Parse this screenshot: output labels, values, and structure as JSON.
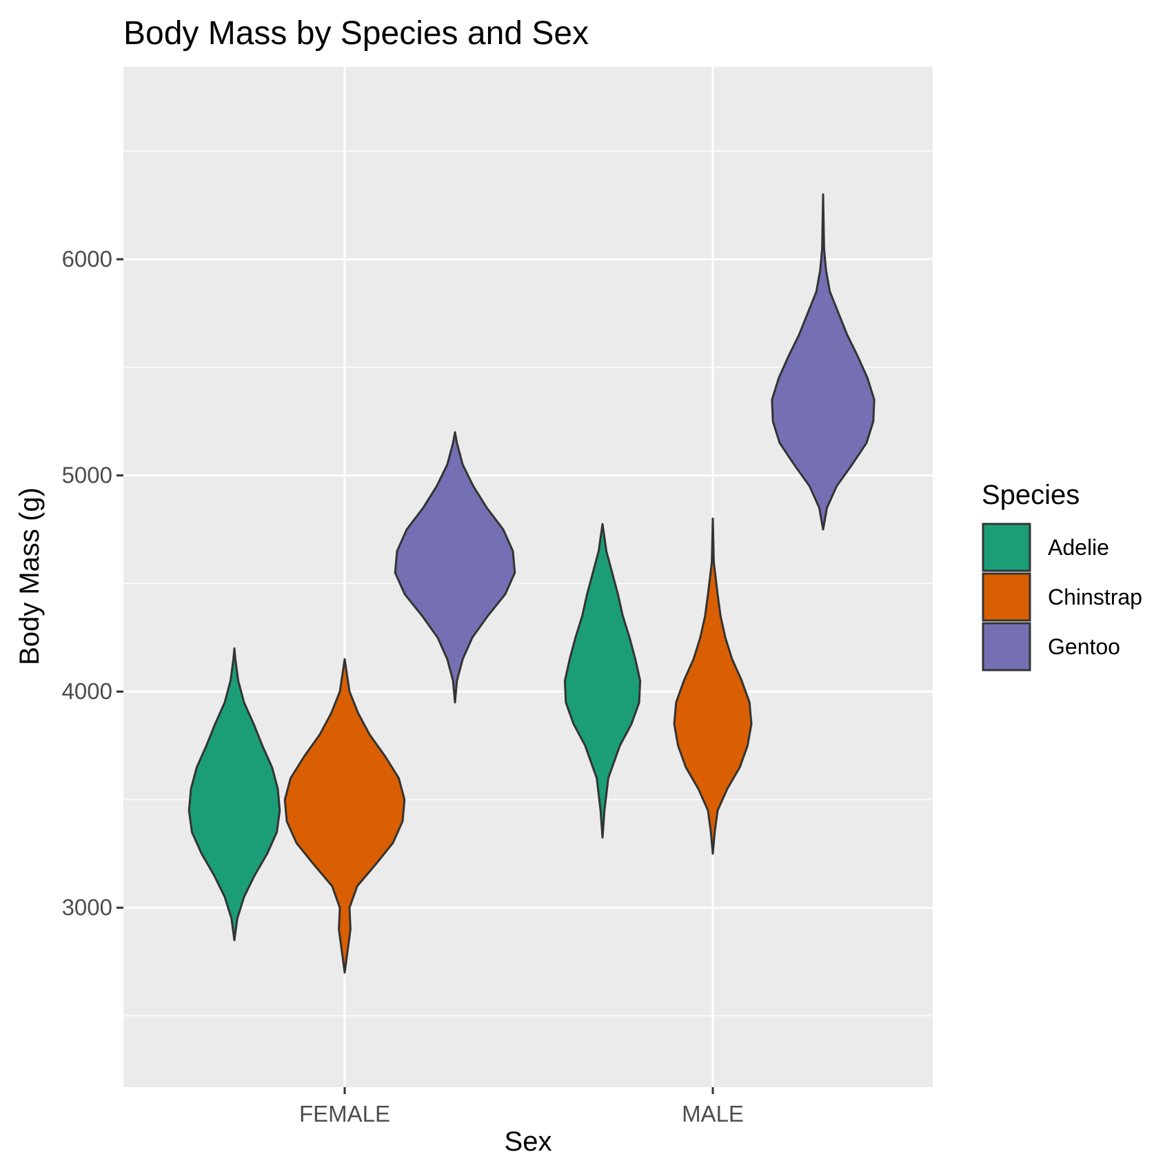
{
  "chart_data": {
    "type": "violin",
    "title": "Body Mass by Species and Sex",
    "xlabel": "Sex",
    "ylabel": "Body Mass (g)",
    "categories": [
      "FEMALE",
      "MALE"
    ],
    "yticks": [
      3000,
      4000,
      5000,
      6000
    ],
    "ylim": [
      2170,
      6890
    ],
    "grid": true,
    "legend": {
      "title": "Species",
      "position": "right"
    },
    "series": [
      {
        "name": "Adelie",
        "color": "#1b9e77",
        "violins": [
          {
            "category": "FEMALE",
            "min": 2850,
            "max": 4200,
            "profile": [
              [
                2850,
                0.0
              ],
              [
                2950,
                0.03
              ],
              [
                3050,
                0.1
              ],
              [
                3150,
                0.21
              ],
              [
                3250,
                0.34
              ],
              [
                3350,
                0.44
              ],
              [
                3450,
                0.47
              ],
              [
                3550,
                0.45
              ],
              [
                3650,
                0.39
              ],
              [
                3750,
                0.29
              ],
              [
                3850,
                0.2
              ],
              [
                3950,
                0.1
              ],
              [
                4050,
                0.04
              ],
              [
                4150,
                0.01
              ],
              [
                4200,
                0.0
              ]
            ]
          },
          {
            "category": "MALE",
            "min": 3325,
            "max": 4775,
            "profile": [
              [
                3325,
                0.0
              ],
              [
                3450,
                0.02
              ],
              [
                3600,
                0.06
              ],
              [
                3750,
                0.18
              ],
              [
                3850,
                0.3
              ],
              [
                3950,
                0.38
              ],
              [
                4050,
                0.39
              ],
              [
                4150,
                0.34
              ],
              [
                4250,
                0.28
              ],
              [
                4350,
                0.21
              ],
              [
                4450,
                0.16
              ],
              [
                4550,
                0.1
              ],
              [
                4650,
                0.04
              ],
              [
                4775,
                0.0
              ]
            ]
          }
        ]
      },
      {
        "name": "Chinstrap",
        "color": "#d95f02",
        "violins": [
          {
            "category": "FEMALE",
            "min": 2700,
            "max": 4150,
            "profile": [
              [
                2700,
                0.0
              ],
              [
                2800,
                0.03
              ],
              [
                2900,
                0.06
              ],
              [
                3000,
                0.05
              ],
              [
                3100,
                0.13
              ],
              [
                3200,
                0.32
              ],
              [
                3300,
                0.5
              ],
              [
                3400,
                0.6
              ],
              [
                3500,
                0.62
              ],
              [
                3600,
                0.56
              ],
              [
                3700,
                0.42
              ],
              [
                3800,
                0.26
              ],
              [
                3900,
                0.14
              ],
              [
                4000,
                0.05
              ],
              [
                4150,
                0.0
              ]
            ]
          },
          {
            "category": "MALE",
            "min": 3250,
            "max": 4800,
            "profile": [
              [
                3250,
                0.0
              ],
              [
                3350,
                0.02
              ],
              [
                3450,
                0.05
              ],
              [
                3550,
                0.15
              ],
              [
                3650,
                0.28
              ],
              [
                3750,
                0.36
              ],
              [
                3850,
                0.4
              ],
              [
                3950,
                0.38
              ],
              [
                4050,
                0.3
              ],
              [
                4150,
                0.2
              ],
              [
                4250,
                0.13
              ],
              [
                4350,
                0.08
              ],
              [
                4450,
                0.05
              ],
              [
                4600,
                0.01
              ],
              [
                4800,
                0.0
              ]
            ]
          }
        ]
      },
      {
        "name": "Gentoo",
        "color": "#7570b3",
        "violins": [
          {
            "category": "FEMALE",
            "min": 3950,
            "max": 5200,
            "profile": [
              [
                3950,
                0.0
              ],
              [
                4050,
                0.02
              ],
              [
                4150,
                0.08
              ],
              [
                4250,
                0.18
              ],
              [
                4350,
                0.34
              ],
              [
                4450,
                0.52
              ],
              [
                4550,
                0.62
              ],
              [
                4650,
                0.6
              ],
              [
                4750,
                0.5
              ],
              [
                4850,
                0.33
              ],
              [
                4950,
                0.19
              ],
              [
                5050,
                0.08
              ],
              [
                5150,
                0.02
              ],
              [
                5200,
                0.0
              ]
            ]
          },
          {
            "category": "MALE",
            "min": 4750,
            "max": 6300,
            "profile": [
              [
                4750,
                0.0
              ],
              [
                4850,
                0.04
              ],
              [
                4950,
                0.14
              ],
              [
                5050,
                0.3
              ],
              [
                5150,
                0.45
              ],
              [
                5250,
                0.52
              ],
              [
                5350,
                0.53
              ],
              [
                5450,
                0.46
              ],
              [
                5550,
                0.36
              ],
              [
                5650,
                0.25
              ],
              [
                5750,
                0.16
              ],
              [
                5850,
                0.07
              ],
              [
                5950,
                0.03
              ],
              [
                6050,
                0.01
              ],
              [
                6300,
                0.0
              ]
            ]
          }
        ]
      }
    ]
  }
}
